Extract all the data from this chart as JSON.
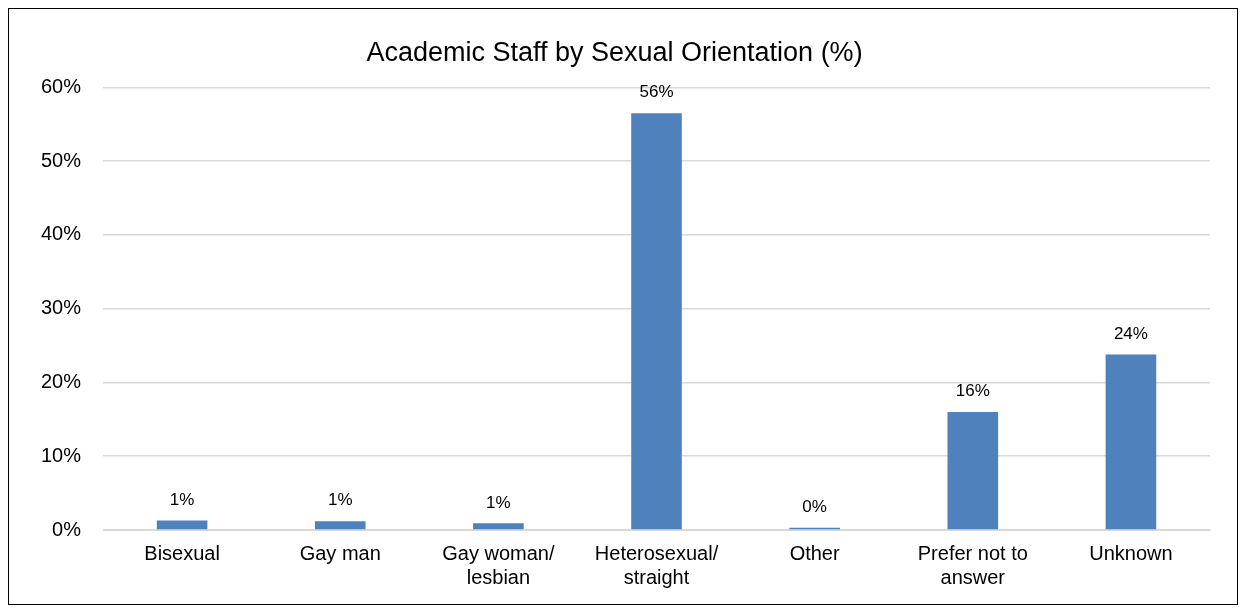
{
  "chart_data": {
    "type": "bar",
    "title": "Academic Staff by Sexual Orientation (%)",
    "categories": [
      "Bisexual",
      "Gay man",
      "Gay woman/ lesbian",
      "Heterosexual/ straight",
      "Other",
      "Prefer not to answer",
      "Unknown"
    ],
    "values": [
      1.3,
      1.2,
      0.9,
      56.5,
      0.3,
      16.0,
      23.8
    ],
    "value_labels": [
      "1%",
      "1%",
      "1%",
      "56%",
      "0%",
      "16%",
      "24%"
    ],
    "color": "#4f81bd",
    "ylim": [
      0,
      60
    ],
    "yticks": [
      {
        "value": 0,
        "label": "0%"
      },
      {
        "value": 10,
        "label": "10%"
      },
      {
        "value": 20,
        "label": "20%"
      },
      {
        "value": 30,
        "label": "30%"
      },
      {
        "value": 40,
        "label": "40%"
      },
      {
        "value": 50,
        "label": "50%"
      },
      {
        "value": 60,
        "label": "60%"
      }
    ],
    "grid": "y",
    "legend": false
  }
}
